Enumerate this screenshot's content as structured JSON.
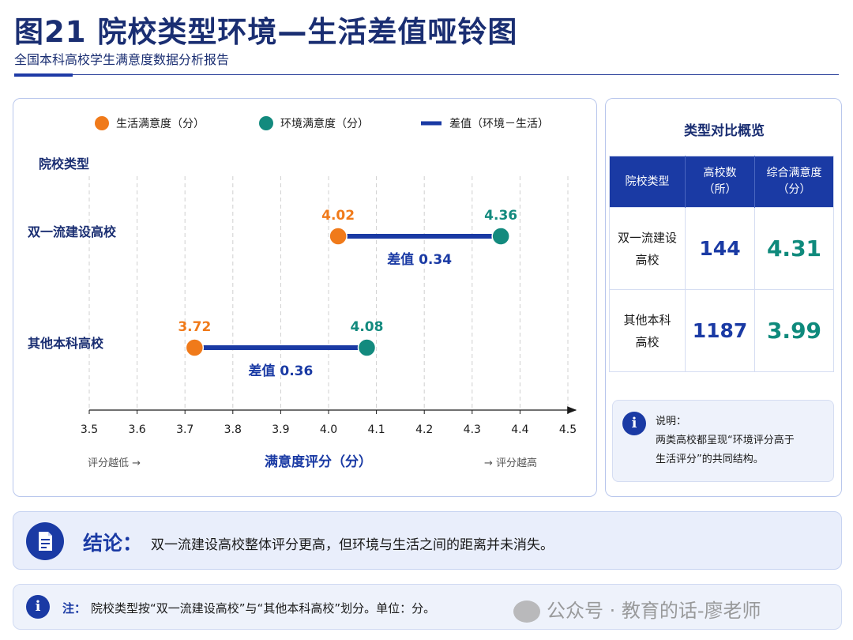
{
  "header": {
    "title": "图21  院校类型环境—生活差值哑铃图",
    "subtitle": "全国本科高校学生满意度数据分析报告"
  },
  "colors": {
    "life": "#f07a1a",
    "env": "#138a7e",
    "gap": "#1a3aa4",
    "navy": "#1a2e72"
  },
  "chart_data": {
    "type": "dumbbell",
    "legend": [
      {
        "name": "生活满意度（分）",
        "marker": "circle",
        "color": "#f07a1a"
      },
      {
        "name": "环境满意度（分）",
        "marker": "circle",
        "color": "#138a7e"
      },
      {
        "name": "差值（环境－生活）",
        "marker": "line",
        "color": "#1a3aa4"
      }
    ],
    "legend_position": "top",
    "y_axis_title": "院校类型",
    "xlabel": "满意度评分（分）",
    "x_ticks": [
      3.5,
      3.6,
      3.7,
      3.8,
      3.9,
      4.0,
      4.1,
      4.2,
      4.3,
      4.4,
      4.5
    ],
    "x_tick_labels": [
      "3.5",
      "3.6",
      "3.7",
      "3.8",
      "3.9",
      "4.0",
      "4.1",
      "4.2",
      "4.3",
      "4.4",
      "4.5"
    ],
    "xlim": [
      3.5,
      4.5
    ],
    "grid": "vertical-dashed",
    "left_hint": "评分越低 →",
    "right_hint": "→ 评分越高",
    "categories": [
      {
        "name": "双一流建设高校",
        "life": 4.02,
        "env": 4.36,
        "life_label": "4.02",
        "env_label": "4.36",
        "gap_label": "差值 0.34"
      },
      {
        "name": "其他本科高校",
        "life": 3.72,
        "env": 4.08,
        "life_label": "3.72",
        "env_label": "4.08",
        "gap_label": "差值 0.36"
      }
    ]
  },
  "side": {
    "title": "类型对比概览",
    "col_type": "院校类型",
    "col_count_1": "高校数",
    "col_count_2": "（所）",
    "col_score_1": "综合满意度",
    "col_score_2": "（分）",
    "rows": [
      {
        "name_1": "双一流建设",
        "name_2": "高校",
        "count": "144",
        "score": "4.31"
      },
      {
        "name_1": "其他本科",
        "name_2": "高校",
        "count": "1187",
        "score": "3.99"
      }
    ],
    "info_label": "说明：",
    "info_text_1": "两类高校都呈现“环境评分高于",
    "info_text_2": "生活评分”的共同结构。"
  },
  "conclusion": {
    "label": "结论：",
    "text": "双一流建设高校整体评分更高，但环境与生活之间的距离并未消失。"
  },
  "note": {
    "label": "注：",
    "text": "院校类型按“双一流建设高校”与“其他本科高校”划分。单位：分。"
  },
  "watermark": "公众号 · 教育的话-廖老师"
}
